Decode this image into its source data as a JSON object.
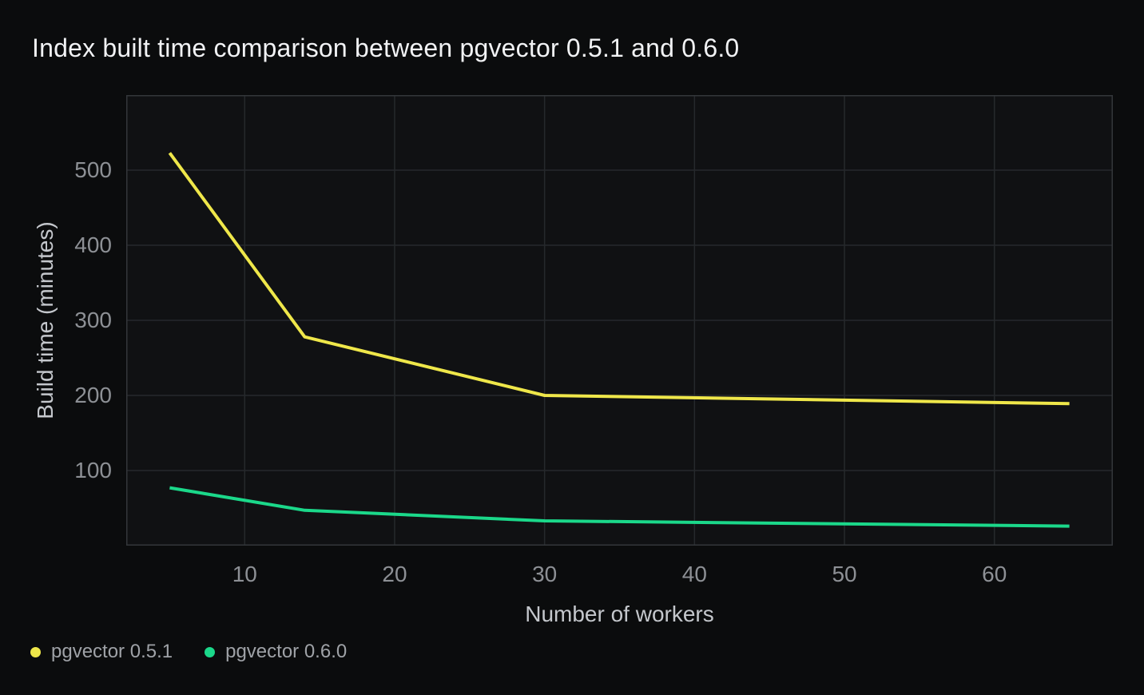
{
  "header": {
    "title": "Index built time comparison between pgvector 0.5.1 and 0.6.0"
  },
  "chart_data": {
    "type": "line",
    "title": "Index built time comparison between pgvector 0.5.1 and 0.6.0",
    "xlabel": "Number of workers",
    "ylabel": "Build time (minutes)",
    "x": [
      5,
      14,
      30,
      65
    ],
    "series": [
      {
        "name": "pgvector 0.5.1",
        "color": "#EFE74A",
        "values": [
          523,
          278,
          200,
          189
        ]
      },
      {
        "name": "pgvector 0.6.0",
        "color": "#1BD88A",
        "values": [
          77,
          47,
          33,
          26
        ]
      }
    ],
    "x_ticks": [
      10,
      20,
      30,
      40,
      50,
      60
    ],
    "y_ticks": [
      100,
      200,
      300,
      400,
      500
    ],
    "xlim": [
      2.1,
      67.9
    ],
    "ylim": [
      0,
      600
    ],
    "grid": true,
    "legend_position": "bottom-left",
    "colors": {
      "background": "#0b0c0d",
      "plot_background": "#101113",
      "grid": "#26292c",
      "border": "#33363a",
      "tick_label": "#8d9095",
      "axis_label": "#c4c7cc",
      "legend_label": "#9fa2a7",
      "title": "#f1f2f4"
    }
  }
}
